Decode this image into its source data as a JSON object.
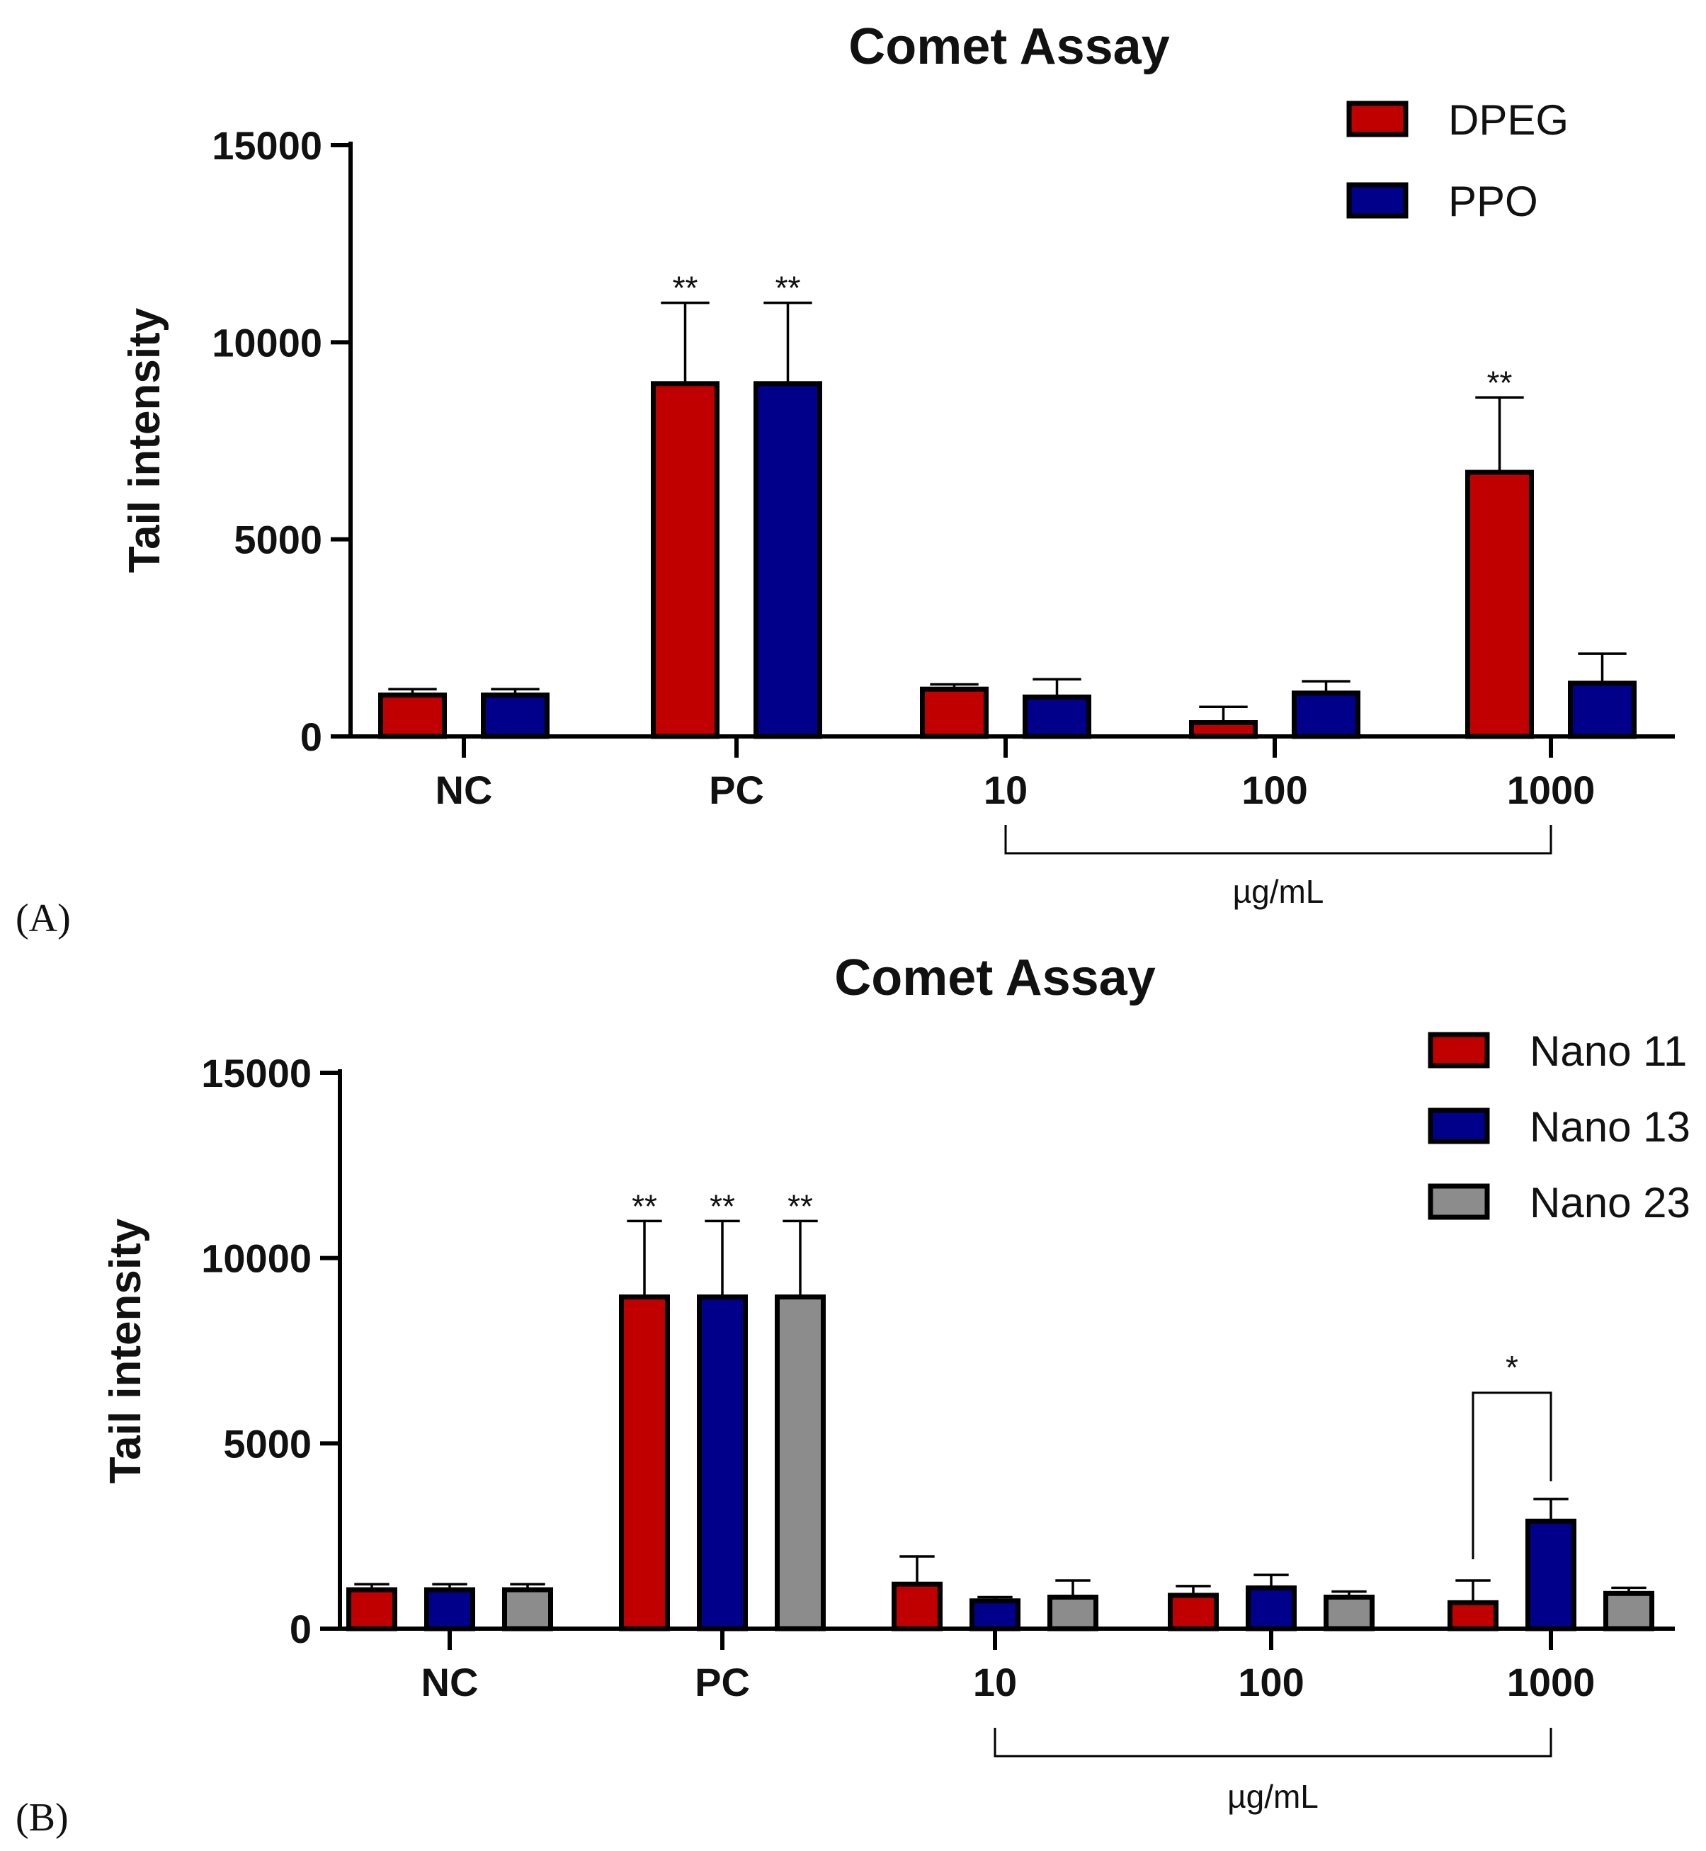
{
  "chart_data": [
    {
      "panel_label": "(A)",
      "type": "bar",
      "title": "Comet Assay",
      "ylabel": "Tail intensity",
      "xlabel": "",
      "unit_label": "µg/mL",
      "ylim": [
        0,
        15000
      ],
      "yticks": [
        0,
        5000,
        10000,
        15000
      ],
      "categories": [
        "NC",
        "PC",
        "10",
        "100",
        "1000"
      ],
      "series": [
        {
          "name": "DPEG",
          "color": "#c00000",
          "values": [
            1050,
            8950,
            1200,
            350,
            6700
          ],
          "errors": [
            150,
            2050,
            120,
            400,
            1900
          ]
        },
        {
          "name": "PPO",
          "color": "#00008b",
          "values": [
            1050,
            8950,
            1000,
            1100,
            1350
          ],
          "errors": [
            150,
            2050,
            450,
            300,
            750
          ]
        }
      ],
      "significance": [
        {
          "category": "PC",
          "series": "DPEG",
          "label": "**"
        },
        {
          "category": "PC",
          "series": "PPO",
          "label": "**"
        },
        {
          "category": "1000",
          "series": "DPEG",
          "label": "**"
        }
      ],
      "comparisons": []
    },
    {
      "panel_label": "(B)",
      "type": "bar",
      "title": "Comet Assay",
      "ylabel": "Tail intensity",
      "xlabel": "",
      "unit_label": "µg/mL",
      "ylim": [
        0,
        15000
      ],
      "yticks": [
        0,
        5000,
        10000,
        15000
      ],
      "categories": [
        "NC",
        "PC",
        "10",
        "100",
        "1000"
      ],
      "series": [
        {
          "name": "Nano 11",
          "color": "#c00000",
          "values": [
            1050,
            8950,
            1200,
            900,
            700
          ],
          "errors": [
            150,
            2050,
            750,
            250,
            600
          ]
        },
        {
          "name": "Nano 13",
          "color": "#00008b",
          "values": [
            1050,
            8950,
            750,
            1100,
            2900
          ],
          "errors": [
            150,
            2050,
            100,
            350,
            600
          ]
        },
        {
          "name": "Nano 23",
          "color": "#8c8c8c",
          "values": [
            1050,
            8950,
            850,
            850,
            950
          ],
          "errors": [
            150,
            2050,
            450,
            150,
            150
          ]
        }
      ],
      "significance": [
        {
          "category": "PC",
          "series": "Nano 11",
          "label": "**"
        },
        {
          "category": "PC",
          "series": "Nano 13",
          "label": "**"
        },
        {
          "category": "PC",
          "series": "Nano 23",
          "label": "**"
        }
      ],
      "comparisons": [
        {
          "category": "1000",
          "from": "Nano 11",
          "to": "Nano 13",
          "label": "*"
        }
      ]
    }
  ]
}
